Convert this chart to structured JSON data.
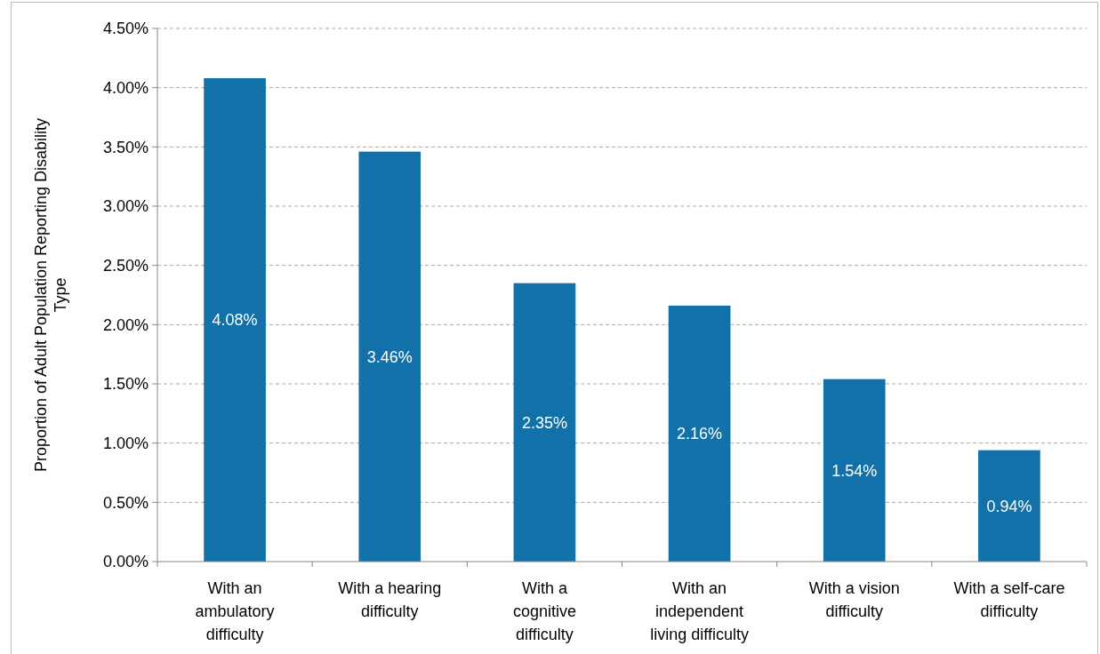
{
  "chart_data": {
    "type": "bar",
    "ylabel": "Proportion of Adult Population Reporting Disability\nType",
    "categories": [
      "With an\nambulatory\ndifficulty",
      "With a hearing\ndifficulty",
      "With a\ncognitive\ndifficulty",
      "With an\nindependent\nliving difficulty",
      "With a vision\ndifficulty",
      "With a self-care\ndifficulty"
    ],
    "values": [
      4.08,
      3.46,
      2.35,
      2.16,
      1.54,
      0.94
    ],
    "value_labels": [
      "4.08%",
      "3.46%",
      "2.35%",
      "2.16%",
      "1.54%",
      "0.94%"
    ],
    "color": "#1271a8",
    "ylim": [
      0,
      4.5
    ],
    "yticks": [
      {
        "value": 0,
        "label": "0.00%"
      },
      {
        "value": 0.5,
        "label": "0.50%"
      },
      {
        "value": 1,
        "label": "1.00%"
      },
      {
        "value": 1.5,
        "label": "1.50%"
      },
      {
        "value": 2,
        "label": "2.00%"
      },
      {
        "value": 2.5,
        "label": "2.50%"
      },
      {
        "value": 3,
        "label": "3.00%"
      },
      {
        "value": 3.5,
        "label": "3.50%"
      },
      {
        "value": 4,
        "label": "4.00%"
      },
      {
        "value": 4.5,
        "label": "4.50%"
      }
    ],
    "grid": "y"
  }
}
